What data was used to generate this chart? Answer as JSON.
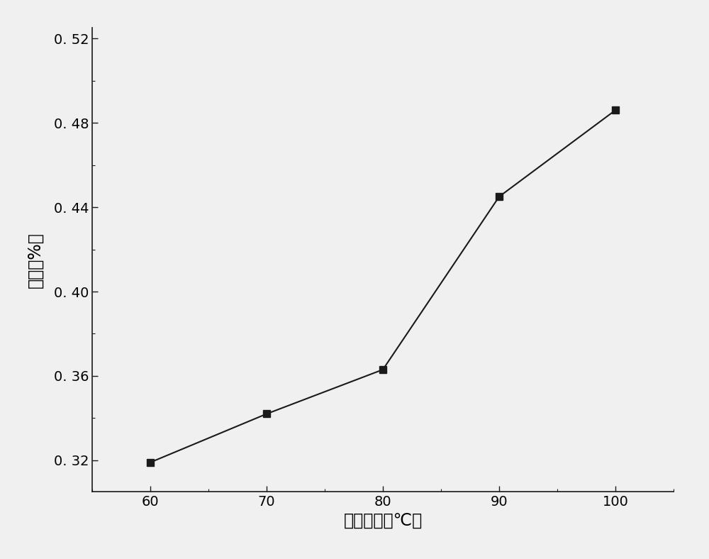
{
  "x": [
    60,
    70,
    80,
    90,
    100
  ],
  "y": [
    0.319,
    0.342,
    0.363,
    0.445,
    0.486
  ],
  "xlabel": "提取温度（℃）",
  "ylabel": "得率（%）",
  "xlim": [
    55,
    105
  ],
  "ylim": [
    0.305,
    0.525
  ],
  "yticks": [
    0.32,
    0.36,
    0.4,
    0.44,
    0.48,
    0.52
  ],
  "ytick_labels": [
    "0. 32",
    "0. 36",
    "0. 40",
    "0. 44",
    "0. 48",
    "0. 52"
  ],
  "xticks": [
    60,
    70,
    80,
    90,
    100
  ],
  "line_color": "#1a1a1a",
  "marker": "s",
  "marker_color": "#1a1a1a",
  "marker_size": 7,
  "linewidth": 1.5,
  "background_color": "#f0f0f0",
  "axes_bg": "#f0f0f0",
  "tick_fontsize": 14,
  "label_fontsize": 17,
  "spine_color": "#1a1a1a"
}
